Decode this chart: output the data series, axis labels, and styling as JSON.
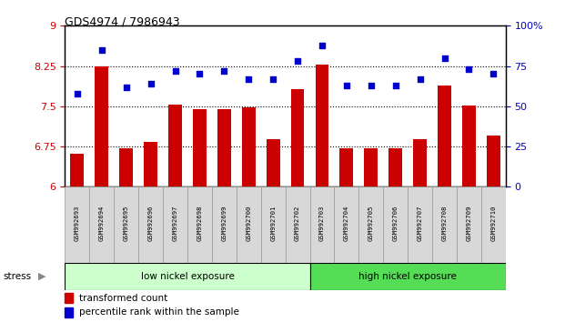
{
  "title": "GDS4974 / 7986943",
  "samples": [
    "GSM992693",
    "GSM992694",
    "GSM992695",
    "GSM992696",
    "GSM992697",
    "GSM992698",
    "GSM992699",
    "GSM992700",
    "GSM992701",
    "GSM992702",
    "GSM992703",
    "GSM992704",
    "GSM992705",
    "GSM992706",
    "GSM992707",
    "GSM992708",
    "GSM992709",
    "GSM992710"
  ],
  "bar_values": [
    6.62,
    8.25,
    6.72,
    6.83,
    7.53,
    7.45,
    7.45,
    7.48,
    6.88,
    7.82,
    8.28,
    6.71,
    6.71,
    6.71,
    6.88,
    7.88,
    7.51,
    6.95
  ],
  "dot_values": [
    58,
    85,
    62,
    64,
    72,
    70,
    72,
    67,
    67,
    78,
    88,
    63,
    63,
    63,
    67,
    80,
    73,
    70
  ],
  "ylim_left": [
    6,
    9
  ],
  "ylim_right": [
    0,
    100
  ],
  "yticks_left": [
    6,
    6.75,
    7.5,
    8.25,
    9
  ],
  "yticks_right": [
    0,
    25,
    50,
    75,
    100
  ],
  "ytick_labels_left": [
    "6",
    "6.75",
    "7.5",
    "8.25",
    "9"
  ],
  "ytick_labels_right": [
    "0",
    "25",
    "50",
    "75",
    "100%"
  ],
  "bar_color": "#CC0000",
  "dot_color": "#0000CC",
  "bar_bottom": 6,
  "group1_label": "low nickel exposure",
  "group2_label": "high nickel exposure",
  "group1_color": "#ccffcc",
  "group2_color": "#55dd55",
  "group1_count": 10,
  "group2_count": 8,
  "stress_label": "stress",
  "legend_bar_label": "transformed count",
  "legend_dot_label": "percentile rank within the sample",
  "tick_label_color_left": "#CC0000",
  "tick_label_color_right": "#0000CC"
}
